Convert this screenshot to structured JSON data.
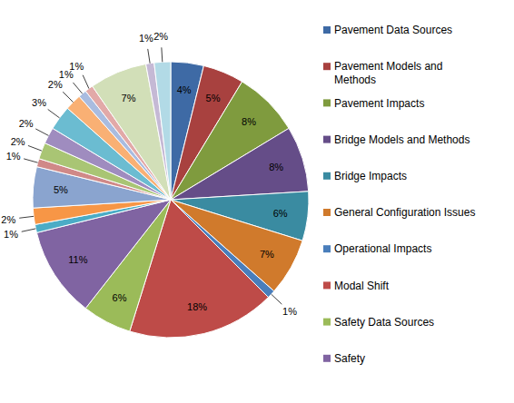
{
  "chart_data": {
    "type": "pie",
    "categories": [
      "Pavement Data Sources",
      "Pavement Models and Methods",
      "Pavement Impacts",
      "Bridge Models and Methods",
      "Bridge Impacts",
      "General Configuration Issues",
      "Operational Impacts",
      "Modal Shift",
      "Safety Data Sources",
      "Safety",
      null,
      null,
      null,
      null,
      null,
      null,
      null,
      null,
      null,
      null,
      null,
      null,
      null
    ],
    "values": [
      4,
      5,
      8,
      8,
      6,
      7,
      1,
      18,
      6,
      11,
      1,
      2,
      5,
      1,
      2,
      2,
      3,
      2,
      1,
      1,
      7,
      1,
      2
    ],
    "value_labels": [
      "4%",
      "5%",
      "8%",
      "8%",
      "6%",
      "7%",
      "1%",
      "18%",
      "6%",
      "11%",
      "1%",
      "2%",
      "5%",
      "1%",
      "2%",
      "2%",
      "3%",
      "2%",
      "1%",
      "1%",
      "7%",
      "1%",
      "2%"
    ],
    "colors": [
      "#3e6aa5",
      "#a8413f",
      "#7f9b3e",
      "#654d88",
      "#3a8ba1",
      "#d07a2c",
      "#4a7ebb",
      "#be4b48",
      "#9bbb59",
      "#8064a2",
      "#4bacc6",
      "#f79646",
      "#8aa4cf",
      "#d08988",
      "#a9c574",
      "#9f8cbf",
      "#6bbcd1",
      "#f9b074",
      "#a9bce0",
      "#e2a9a8",
      "#d2dfb8",
      "#c5b9d5",
      "#b2dae6"
    ],
    "data_labels": true,
    "legend": "right"
  }
}
